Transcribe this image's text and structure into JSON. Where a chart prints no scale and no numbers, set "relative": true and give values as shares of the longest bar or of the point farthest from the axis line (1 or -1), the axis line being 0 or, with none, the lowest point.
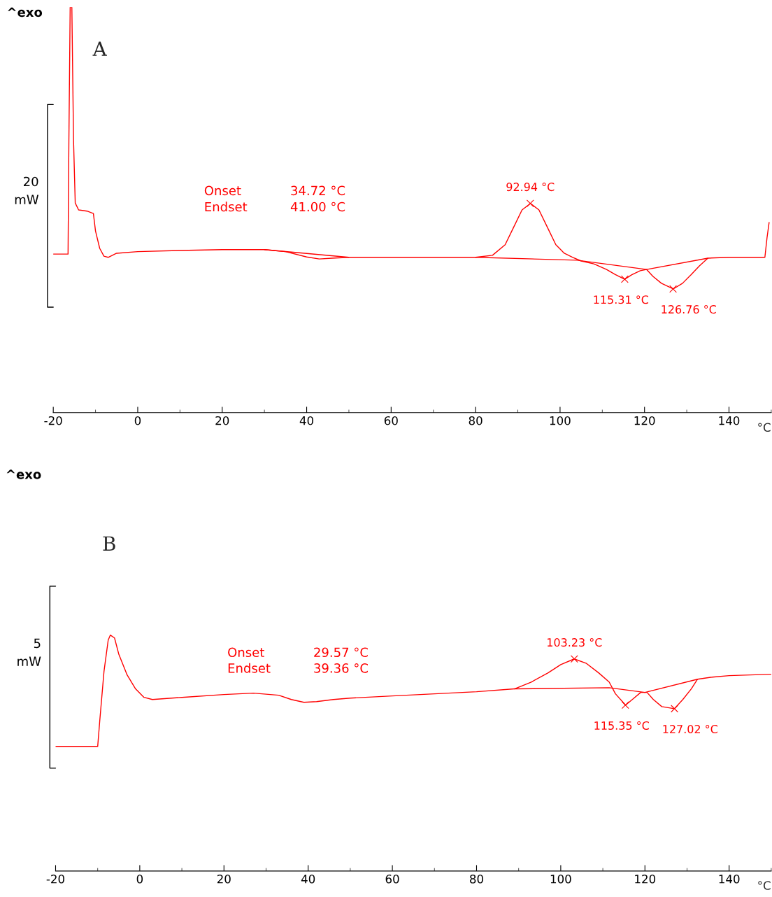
{
  "chart_data": [
    {
      "type": "line",
      "title": "A",
      "relative": true,
      "xlabel": "°C",
      "xlim": [
        -20,
        150
      ],
      "xticks": [
        -20,
        0,
        20,
        40,
        60,
        80,
        100,
        120,
        140
      ],
      "tick_labels": "x",
      "grid": false,
      "legend": false,
      "x": [
        -20,
        -16.5,
        -16.3,
        -16.0,
        -15.6,
        -15.2,
        -14.8,
        -14,
        -12,
        -10.5,
        -10,
        -9,
        -8,
        -7,
        -5,
        0,
        10,
        20,
        30,
        35,
        40,
        43,
        46,
        50,
        60,
        70,
        80,
        84,
        87,
        89,
        91,
        93,
        95,
        97,
        99,
        101,
        103,
        105,
        108,
        111,
        113,
        115.3,
        117,
        119,
        120.5,
        122,
        124,
        126.8,
        129,
        131,
        133,
        135,
        140,
        146,
        148.5,
        149,
        149.5
      ],
      "series": [
        {
          "color": "#ff0000",
          "values": [
            0.391,
            0.391,
            0.672,
            1.0,
            1.0,
            0.672,
            0.517,
            0.5,
            0.497,
            0.491,
            0.448,
            0.405,
            0.386,
            0.383,
            0.393,
            0.397,
            0.4,
            0.402,
            0.402,
            0.397,
            0.384,
            0.379,
            0.381,
            0.383,
            0.383,
            0.383,
            0.383,
            0.388,
            0.414,
            0.457,
            0.5,
            0.516,
            0.5,
            0.457,
            0.414,
            0.393,
            0.383,
            0.374,
            0.367,
            0.353,
            0.341,
            0.329,
            0.34,
            0.35,
            0.353,
            0.336,
            0.319,
            0.305,
            0.319,
            0.34,
            0.362,
            0.381,
            0.383,
            0.383,
            0.383,
            0.431,
            0.469
          ]
        },
        {
          "color": "#ff0000",
          "x": [
            30,
            50,
            null,
            80,
            104,
            120.5,
            135
          ],
          "values": [
            0.402,
            0.383,
            null,
            0.383,
            0.376,
            0.353,
            0.381
          ]
        }
      ],
      "annotations": [
        "^exo",
        "20\nmW",
        "Onset",
        "Endset",
        "34.72 °C",
        "41.00 °C",
        {
          "text": "92.94 °C",
          "x": 92.94,
          "y": 0.516
        },
        {
          "text": "115.31 °C",
          "x": 115.31,
          "y": 0.329
        },
        {
          "text": "126.76 °C",
          "x": 126.76,
          "y": 0.305
        }
      ]
    },
    {
      "type": "line",
      "title": "B",
      "relative": true,
      "xlabel": "°C",
      "xlim": [
        -20,
        150
      ],
      "xticks": [
        -20,
        0,
        20,
        40,
        60,
        80,
        100,
        120,
        140
      ],
      "tick_labels": "x",
      "grid": false,
      "legend": false,
      "x": [
        -20,
        -10,
        -9.5,
        -8.5,
        -7.5,
        -7,
        -6,
        -5,
        -3,
        -1,
        1,
        3,
        10,
        20,
        27,
        33,
        36,
        39,
        42,
        46,
        50,
        60,
        70,
        80,
        89,
        93,
        97,
        100,
        103.2,
        106,
        109,
        111.5,
        113,
        115.4,
        117,
        119,
        120.5,
        122,
        124,
        127,
        129,
        131,
        132.5,
        136,
        140,
        145,
        150
      ],
      "series": [
        {
          "color": "#ff0000",
          "values": [
            0.528,
            0.528,
            0.638,
            0.846,
            0.979,
            1.0,
            0.988,
            0.92,
            0.831,
            0.772,
            0.736,
            0.727,
            0.736,
            0.748,
            0.754,
            0.745,
            0.727,
            0.715,
            0.718,
            0.727,
            0.733,
            0.742,
            0.751,
            0.76,
            0.772,
            0.801,
            0.84,
            0.875,
            0.899,
            0.881,
            0.84,
            0.801,
            0.751,
            0.703,
            0.727,
            0.757,
            0.757,
            0.727,
            0.697,
            0.688,
            0.727,
            0.772,
            0.813,
            0.822,
            0.828,
            0.831,
            0.834
          ]
        },
        {
          "color": "#ff0000",
          "x": [
            89,
            111.5,
            120,
            132.5
          ],
          "values": [
            0.772,
            0.777,
            0.757,
            0.813
          ]
        }
      ],
      "annotations": [
        "^exo",
        "5\nmW",
        "Onset",
        "Endset",
        "29.57 °C",
        "39.36 °C",
        {
          "text": "103.23 °C",
          "x": 103.23,
          "y": 0.899
        },
        {
          "text": "115.35 °C",
          "x": 115.35,
          "y": 0.703
        },
        {
          "text": "127.02 °C",
          "x": 127.02,
          "y": 0.688
        }
      ]
    }
  ]
}
